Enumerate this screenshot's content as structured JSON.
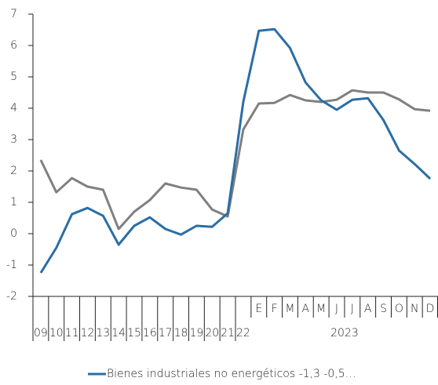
{
  "chart_data": {
    "type": "line",
    "categories": [
      "09",
      "10",
      "11",
      "12",
      "13",
      "14",
      "15",
      "16",
      "17",
      "18",
      "19",
      "20",
      "21",
      "22",
      "E",
      "F",
      "M",
      "A",
      "M",
      "J",
      "J",
      "A",
      "S",
      "O",
      "N",
      "D"
    ],
    "x_group_label": "2023",
    "series": [
      {
        "name": "Bienes industriales no energéticos -1,3 -0,5…",
        "color": "#2b6ea6",
        "values": [
          -1.25,
          -0.45,
          0.62,
          0.82,
          0.57,
          -0.35,
          0.25,
          0.52,
          0.15,
          -0.03,
          0.25,
          0.22,
          0.65,
          4.2,
          6.47,
          6.52,
          5.92,
          4.82,
          4.25,
          3.95,
          4.27,
          4.32,
          3.62,
          2.65,
          2.22,
          1.75
        ]
      },
      {
        "color": "#808080",
        "values": [
          2.35,
          1.32,
          1.77,
          1.5,
          1.4,
          0.15,
          0.7,
          1.07,
          1.6,
          1.47,
          1.4,
          0.77,
          0.55,
          3.32,
          4.15,
          4.17,
          4.42,
          4.25,
          4.2,
          4.27,
          4.57,
          4.5,
          4.5,
          4.28,
          3.97,
          3.92
        ]
      }
    ],
    "ylim": [
      -2,
      7
    ],
    "yticks": [
      -2,
      -1,
      0,
      1,
      2,
      3,
      4,
      5,
      6,
      7
    ]
  }
}
